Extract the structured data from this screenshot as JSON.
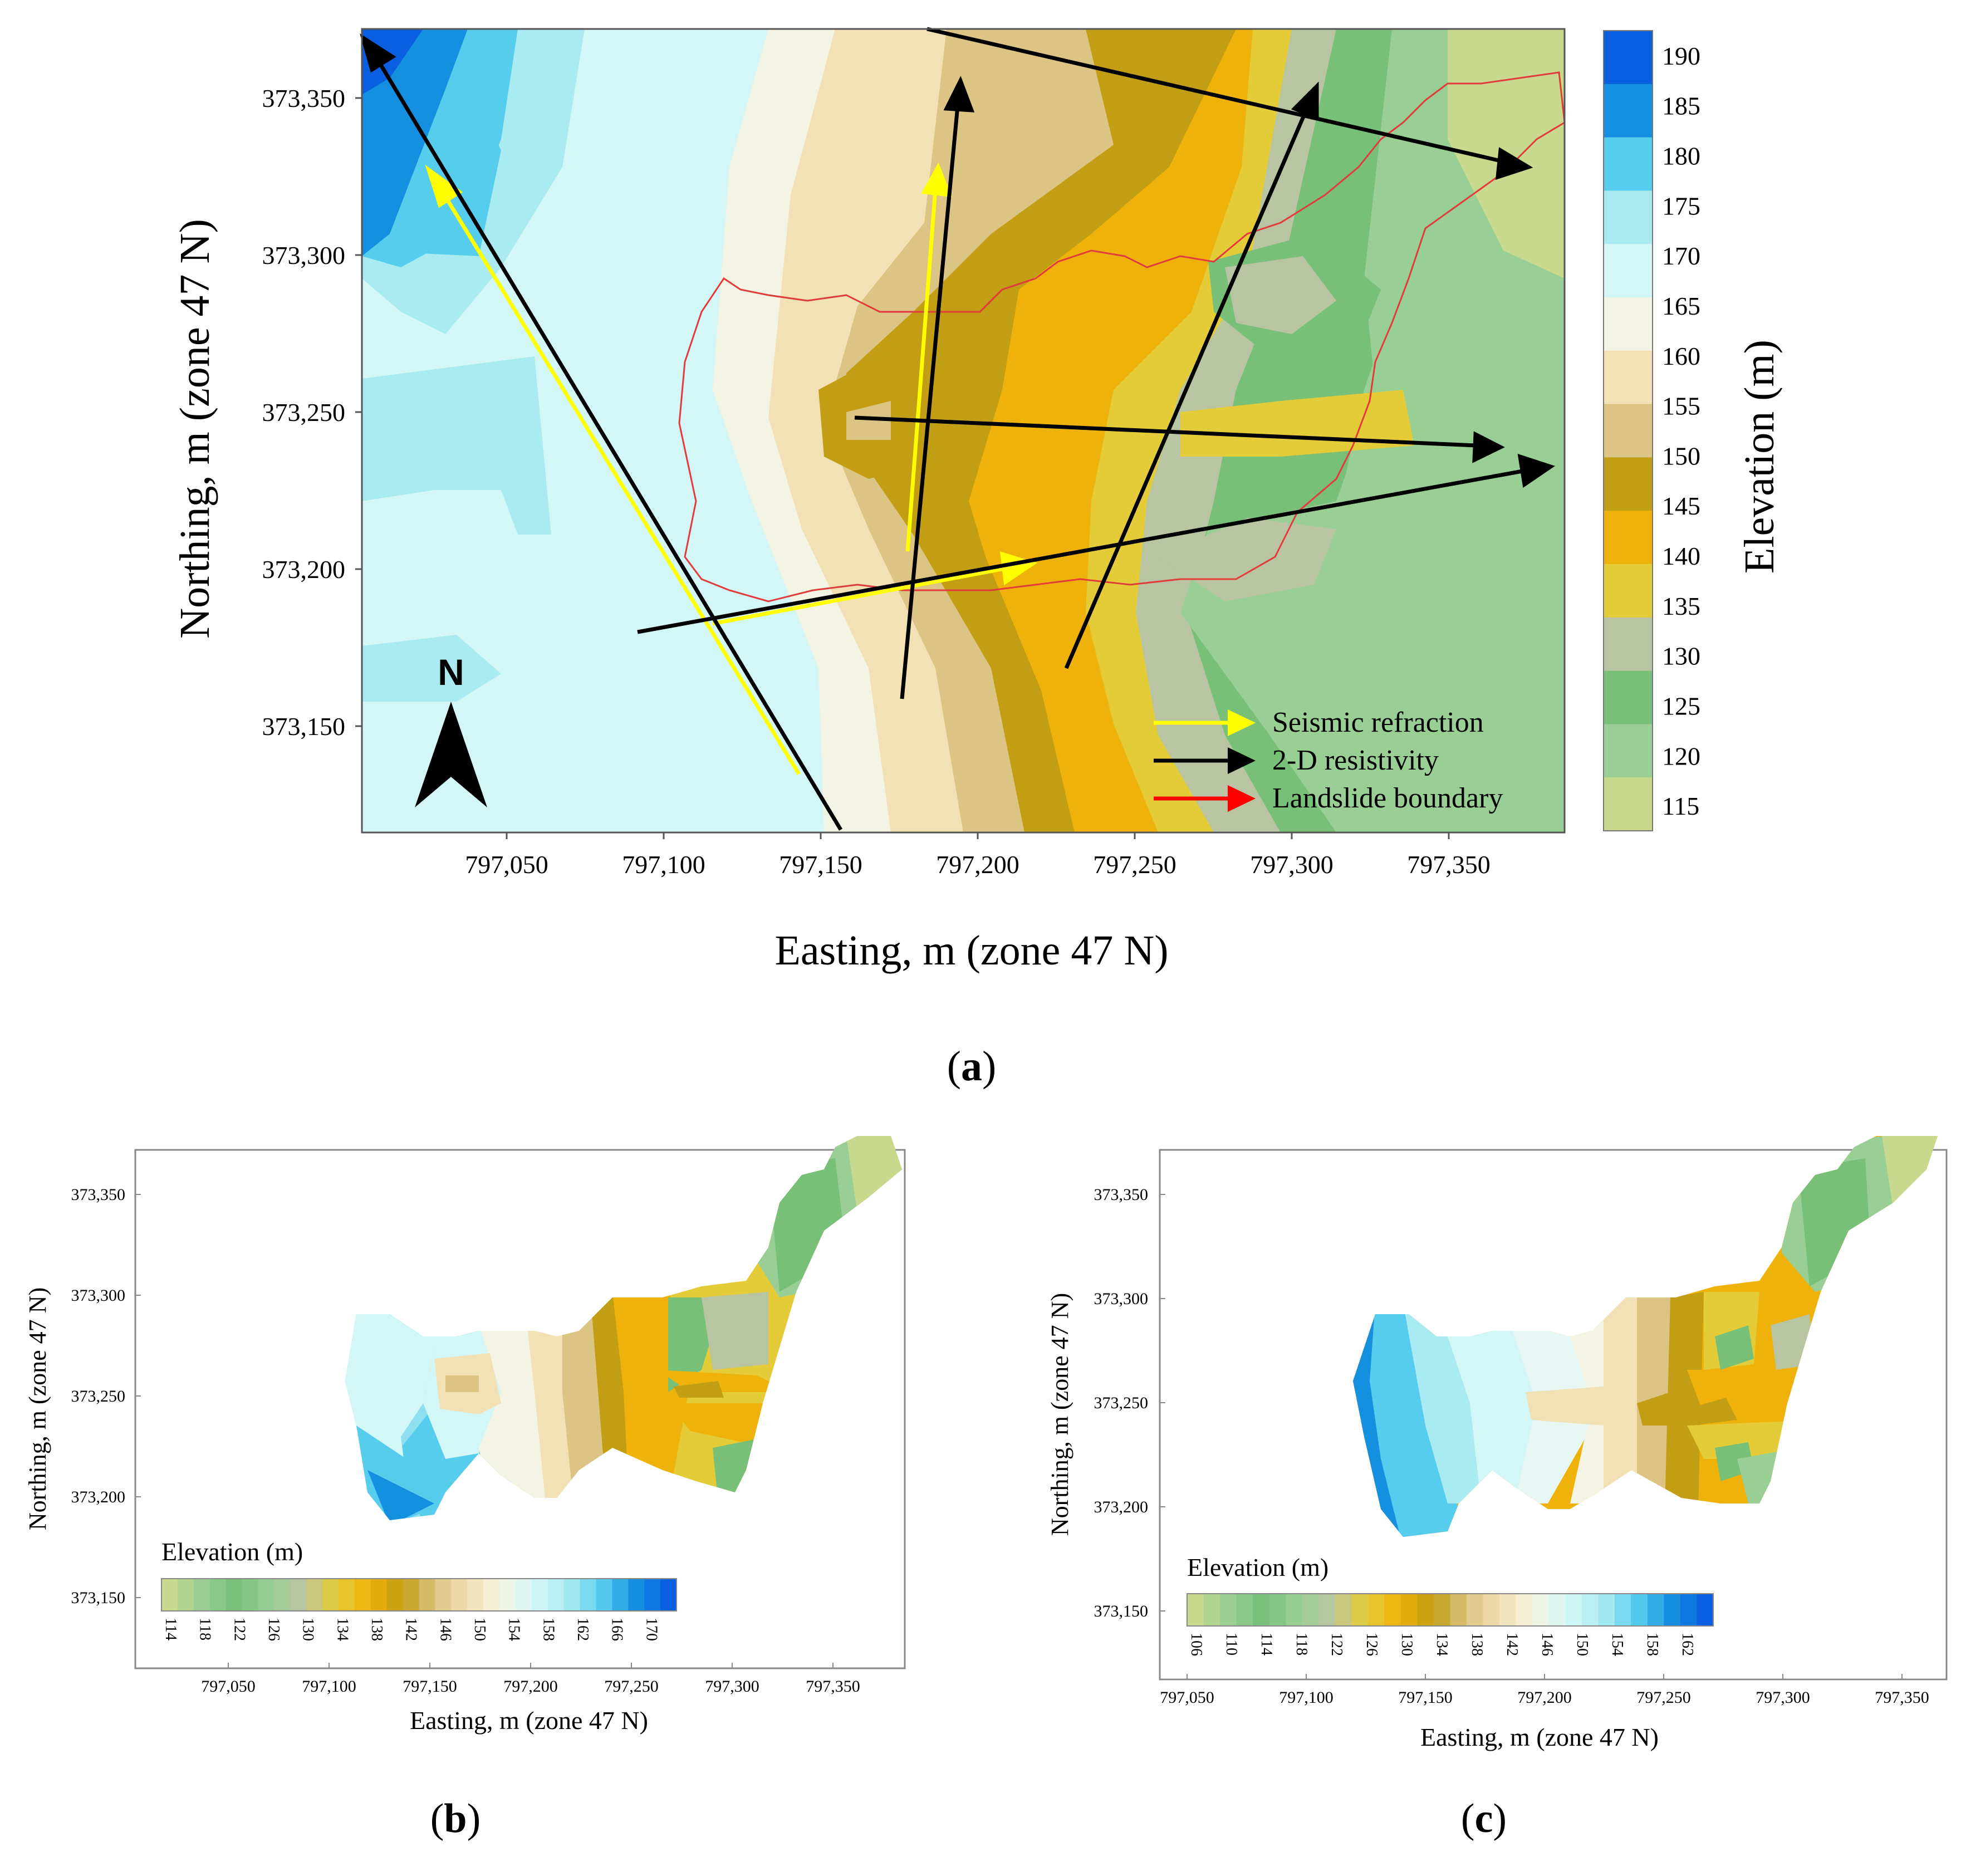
{
  "panel_a": {
    "label_open": "(",
    "label_letter": "a",
    "label_close": ")",
    "xlabel": "Easting, m (zone 47 N)",
    "ylabel": "Northing, m (zone 47 N)",
    "xticks": [
      "797,050",
      "797,100",
      "797,150",
      "797,200",
      "797,250",
      "797,300",
      "797,350"
    ],
    "yticks": [
      "373,350",
      "373,300",
      "373,250",
      "373,200",
      "373,150"
    ],
    "north_label": "N",
    "colorbar_title": "Elevation (m)",
    "colorbar_ticks": [
      "190",
      "185",
      "180",
      "175",
      "170",
      "165",
      "160",
      "155",
      "150",
      "145",
      "140",
      "135",
      "130",
      "125",
      "120",
      "115"
    ],
    "colorbar_colors": [
      "#0a5fe0",
      "#1590e0",
      "#57cdee",
      "#a9ebf1",
      "#d3f6f7",
      "#f3f4e3",
      "#f2e1b5",
      "#dcc484",
      "#c19e14",
      "#efb20a",
      "#e3cc38",
      "#b9c5a2",
      "#78bf78",
      "#99cf94",
      "#c8d98e"
    ],
    "legend": [
      {
        "label": "Seismic refraction",
        "color": "#ffff00"
      },
      {
        "label": "2-D resistivity",
        "color": "#000000"
      },
      {
        "label": "Landslide boundary",
        "color": "#ff0000"
      }
    ]
  },
  "panel_b": {
    "label_open": "(",
    "label_letter": "b",
    "label_close": ")",
    "xlabel": "Easting, m (zone 47 N)",
    "ylabel": "Northing, m (zone 47 N)",
    "xticks": [
      "797,050",
      "797,100",
      "797,150",
      "797,200",
      "797,250",
      "797,300",
      "797,350"
    ],
    "yticks": [
      "373,350",
      "373,300",
      "373,250",
      "373,200",
      "373,150"
    ],
    "colorbar_title": "Elevation (m)",
    "colorbar_ticks": [
      "114",
      "118",
      "122",
      "126",
      "130",
      "134",
      "138",
      "142",
      "146",
      "150",
      "154",
      "158",
      "162",
      "166",
      "170"
    ]
  },
  "panel_c": {
    "label_open": "(",
    "label_letter": "c",
    "label_close": ")",
    "xlabel": "Easting, m (zone 47 N)",
    "ylabel": "Northing, m (zone 47 N)",
    "xticks": [
      "797,050",
      "797,100",
      "797,150",
      "797,200",
      "797,250",
      "797,300",
      "797,350"
    ],
    "yticks": [
      "373,350",
      "373,300",
      "373,250",
      "373,200",
      "373,150"
    ],
    "colorbar_title": "Elevation (m)",
    "colorbar_ticks": [
      "106",
      "110",
      "114",
      "118",
      "122",
      "126",
      "130",
      "134",
      "138",
      "142",
      "146",
      "150",
      "154",
      "158",
      "162"
    ]
  }
}
